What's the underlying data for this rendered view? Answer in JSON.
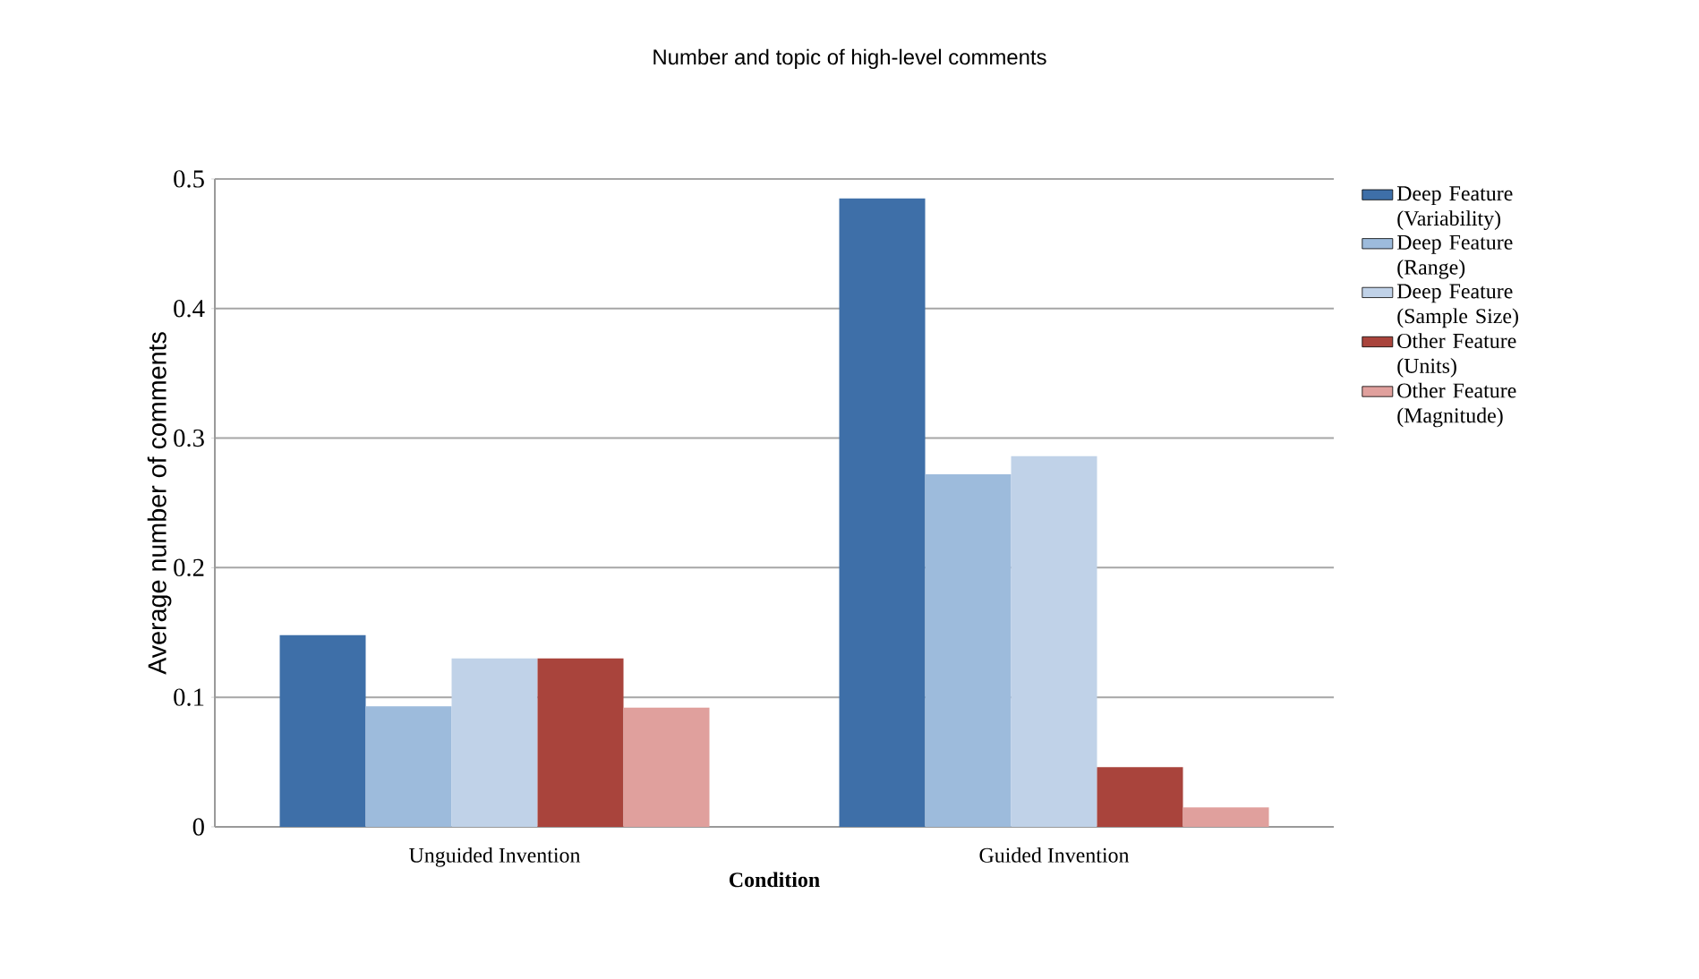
{
  "chart_data": {
    "type": "bar",
    "title": "Number and topic of high-level comments",
    "xlabel": "Condition",
    "ylabel": "Average number of comments",
    "categories": [
      "Unguided Invention",
      "Guided Invention"
    ],
    "series": [
      {
        "name": "Deep Feature (Variability)",
        "color": "#3e6fa8",
        "values": [
          0.148,
          0.485
        ]
      },
      {
        "name": "Deep Feature (Range)",
        "color": "#9dbbdc",
        "values": [
          0.093,
          0.272
        ]
      },
      {
        "name": "Deep Feature (Sample Size)",
        "color": "#c0d2e8",
        "values": [
          0.13,
          0.286
        ]
      },
      {
        "name": "Other Feature (Units)",
        "color": "#a9443c",
        "values": [
          0.13,
          0.046
        ]
      },
      {
        "name": "Other Feature (Magnitude)",
        "color": "#e0a09d",
        "values": [
          0.092,
          0.015
        ]
      }
    ],
    "ylim": [
      0,
      0.5
    ],
    "yticks": [
      0,
      0.1,
      0.2,
      0.3,
      0.4,
      0.5
    ],
    "grid": "y",
    "legend": "right"
  }
}
